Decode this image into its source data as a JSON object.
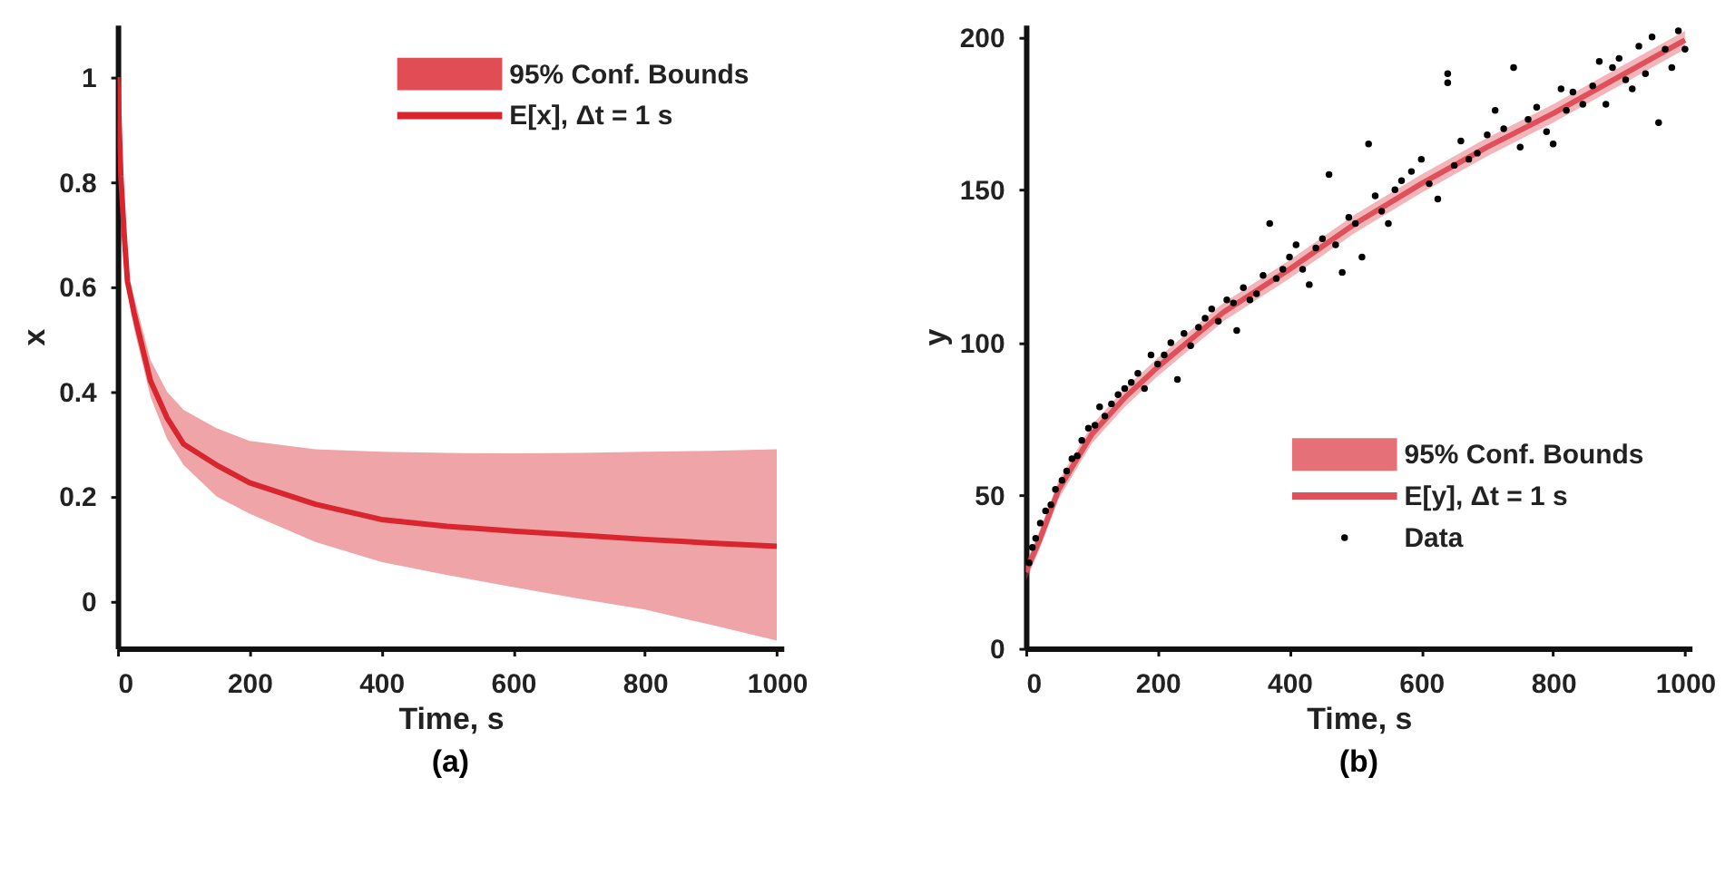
{
  "chart_data": [
    {
      "type": "line",
      "title": "(a)",
      "xlabel": "Time, s",
      "ylabel": "x",
      "xlim": [
        0,
        1010
      ],
      "xticks": [
        0,
        200,
        400,
        600,
        800,
        1000
      ],
      "ylim": [
        -0.09,
        1.1
      ],
      "yticks": [
        0,
        0.2,
        0.4,
        0.6,
        0.8,
        1
      ],
      "legend": "top right",
      "annotations": [
        "95% Conf. Bounds"
      ],
      "series": [
        {
          "name": "E[x], Δt = 1 s",
          "color": "#d9262e",
          "x": [
            0,
            5,
            10,
            15,
            25,
            50,
            75,
            100,
            150,
            200,
            300,
            400,
            500,
            600,
            700,
            800,
            900,
            1000
          ],
          "values": [
            1,
            0.81,
            0.7,
            0.61,
            0.55,
            0.42,
            0.35,
            0.3,
            0.26,
            0.226,
            0.185,
            0.156,
            0.143,
            0.134,
            0.126,
            0.118,
            0.111,
            0.105
          ],
          "lower": [
            1,
            0.8,
            0.68,
            0.59,
            0.52,
            0.39,
            0.31,
            0.26,
            0.2,
            0.167,
            0.113,
            0.075,
            0.05,
            0.027,
            0.005,
            -0.016,
            -0.045,
            -0.075
          ],
          "upper": [
            1,
            0.82,
            0.72,
            0.63,
            0.58,
            0.46,
            0.4,
            0.365,
            0.33,
            0.306,
            0.29,
            0.285,
            0.283,
            0.282,
            0.283,
            0.285,
            0.287,
            0.29
          ]
        }
      ]
    },
    {
      "type": "line",
      "title": "(b)",
      "xlabel": "Time, s",
      "ylabel": "y",
      "xlim": [
        0,
        1010
      ],
      "xticks": [
        0,
        200,
        400,
        600,
        800,
        1000
      ],
      "ylim": [
        0,
        204
      ],
      "yticks": [
        0,
        50,
        100,
        150,
        200
      ],
      "legend": "bottom right",
      "annotations": [
        "95%  Conf. Bounds"
      ],
      "series": [
        {
          "name": "E[y], Δt = 1 s",
          "color": "#e0505a",
          "x": [
            0,
            20,
            50,
            100,
            150,
            200,
            300,
            400,
            500,
            600,
            700,
            800,
            900,
            1000
          ],
          "values": [
            25,
            35,
            52,
            70,
            82,
            92,
            110,
            124,
            139,
            152,
            164,
            175,
            187,
            199
          ],
          "lower": [
            22,
            32,
            49,
            67,
            79,
            89,
            107,
            121,
            136,
            149,
            161,
            172,
            184,
            196
          ],
          "upper": [
            28,
            38,
            55,
            73,
            85,
            95,
            113,
            127,
            142,
            155,
            167,
            178,
            190,
            202
          ]
        },
        {
          "name": "Data",
          "type": "scatter",
          "color": "#000000",
          "marker": "circle",
          "x": [
            5,
            10,
            15,
            22,
            30,
            38,
            45,
            55,
            62,
            70,
            78,
            85,
            95,
            105,
            112,
            120,
            130,
            140,
            150,
            160,
            170,
            180,
            190,
            200,
            210,
            220,
            230,
            240,
            250,
            262,
            272,
            282,
            292,
            305,
            315,
            320,
            330,
            340,
            350,
            360,
            370,
            380,
            390,
            400,
            410,
            420,
            430,
            440,
            450,
            460,
            470,
            480,
            490,
            500,
            510,
            520,
            530,
            540,
            550,
            560,
            570,
            585,
            600,
            612,
            625,
            640,
            640,
            650,
            660,
            672,
            685,
            700,
            712,
            725,
            740,
            750,
            762,
            775,
            790,
            800,
            812,
            820,
            830,
            845,
            860,
            870,
            880,
            890,
            900,
            910,
            920,
            930,
            940,
            950,
            960,
            970,
            980,
            990,
            1000
          ],
          "values": [
            28,
            33,
            36,
            41,
            45,
            47,
            52,
            55,
            58,
            62,
            63,
            68,
            72,
            73,
            79,
            76,
            80,
            83,
            85,
            87,
            90,
            85,
            96,
            93,
            96,
            100,
            88,
            103,
            99,
            105,
            108,
            111,
            107,
            114,
            113,
            104,
            118,
            114,
            116,
            122,
            139,
            121,
            124,
            128,
            132,
            124,
            119,
            131,
            134,
            155,
            132,
            123,
            141,
            139,
            128,
            165,
            148,
            143,
            139,
            150,
            153,
            156,
            160,
            152,
            147,
            188,
            185,
            158,
            166,
            160,
            162,
            168,
            176,
            170,
            190,
            164,
            173,
            177,
            169,
            165,
            183,
            176,
            182,
            178,
            184,
            192,
            178,
            190,
            193,
            186,
            183,
            197,
            188,
            200,
            172,
            196,
            190,
            202,
            196
          ]
        }
      ]
    }
  ]
}
